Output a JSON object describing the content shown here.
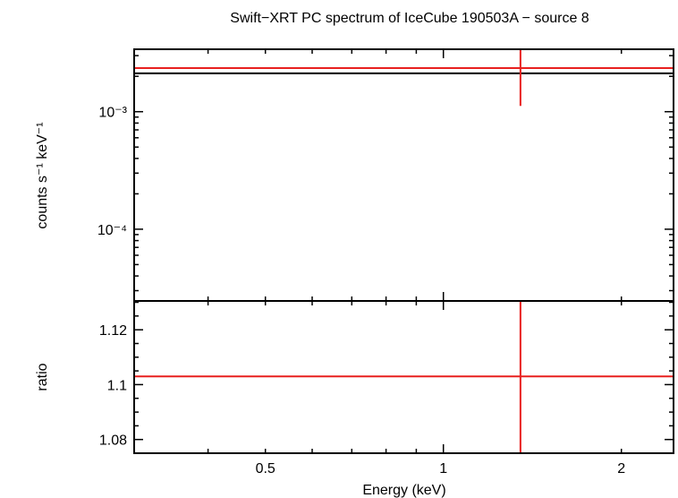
{
  "title": "Swift−XRT PC spectrum of IceCube 190503A − source 8",
  "chart_data": [
    {
      "type": "scatter",
      "panel": "spectrum",
      "ylabel": "counts s⁻¹ keV⁻¹",
      "yscale": "log",
      "xscale": "log",
      "xlim": [
        0.3,
        2.45
      ],
      "ylim": [
        2.45e-05,
        0.0034
      ],
      "yticks": [
        {
          "value": 0.001,
          "label": "10⁻³"
        },
        {
          "value": 0.0001,
          "label": "10⁻⁴"
        }
      ],
      "data_points": [
        {
          "x": 1.35,
          "x_err_low": 0.3,
          "x_err_high": 2.45,
          "y": 0.00235,
          "y_err_low": 0.00112,
          "y_err_high": 0.0034
        }
      ],
      "model_line": {
        "x": [
          0.3,
          2.45
        ],
        "y": [
          0.00212,
          0.00212
        ]
      },
      "colors": {
        "data": "#e8201f",
        "model": "#000000"
      }
    },
    {
      "type": "scatter",
      "panel": "ratio",
      "xlabel": "Energy (keV)",
      "ylabel": "ratio",
      "xscale": "log",
      "xlim": [
        0.3,
        2.45
      ],
      "ylim": [
        1.075,
        1.1305
      ],
      "xticks": [
        {
          "value": 0.5,
          "label": "0.5"
        },
        {
          "value": 1,
          "label": "1"
        },
        {
          "value": 2,
          "label": "2"
        }
      ],
      "yticks": [
        {
          "value": 1.12,
          "label": "1.12"
        },
        {
          "value": 1.1,
          "label": "1.1"
        },
        {
          "value": 1.08,
          "label": "1.08"
        }
      ],
      "data_points": [
        {
          "x": 1.35,
          "x_err_low": 0.3,
          "x_err_high": 2.45,
          "y": 1.103,
          "y_err_low": 1.075,
          "y_err_high": 1.1305
        }
      ],
      "colors": {
        "data": "#e8201f"
      }
    }
  ]
}
